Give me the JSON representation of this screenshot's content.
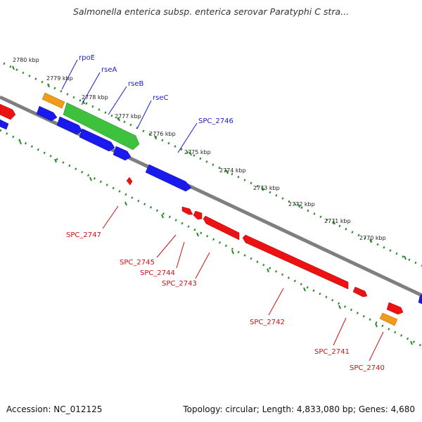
{
  "title": "Salmonella enterica subsp. enterica serovar Paratyphi C stra...",
  "footer": {
    "accession": "Accession: NC_012125",
    "summary": "Topology: circular; Length: 4,833,080 bp; Genes: 4,680"
  },
  "colors": {
    "backbone": "#7f7f7f",
    "tick": "#2a8a2a",
    "forward_gene": "#1a1aee",
    "reverse_gene": "#ee1111",
    "rna_gene": "#f39a1a",
    "operon": "#3ec23e",
    "forward_label": "#1a1acc",
    "reverse_label": "#cc1111"
  },
  "scale_labels": [
    "2780 kbp",
    "2779 kbp",
    "2778 kbp",
    "2777 kbp",
    "2776 kbp",
    "2775 kbp",
    "2774 kbp",
    "2773 kbp",
    "2772 kbp",
    "2771 kbp",
    "2770 kbp"
  ],
  "forward_gene_labels": [
    "rpoE",
    "rseA",
    "rseB",
    "rseC",
    "SPC_2746"
  ],
  "reverse_gene_labels": [
    "SPC_2747",
    "SPC_2745",
    "SPC_2744",
    "SPC_2743",
    "SPC_2742",
    "SPC_2741",
    "SPC_2740"
  ]
}
